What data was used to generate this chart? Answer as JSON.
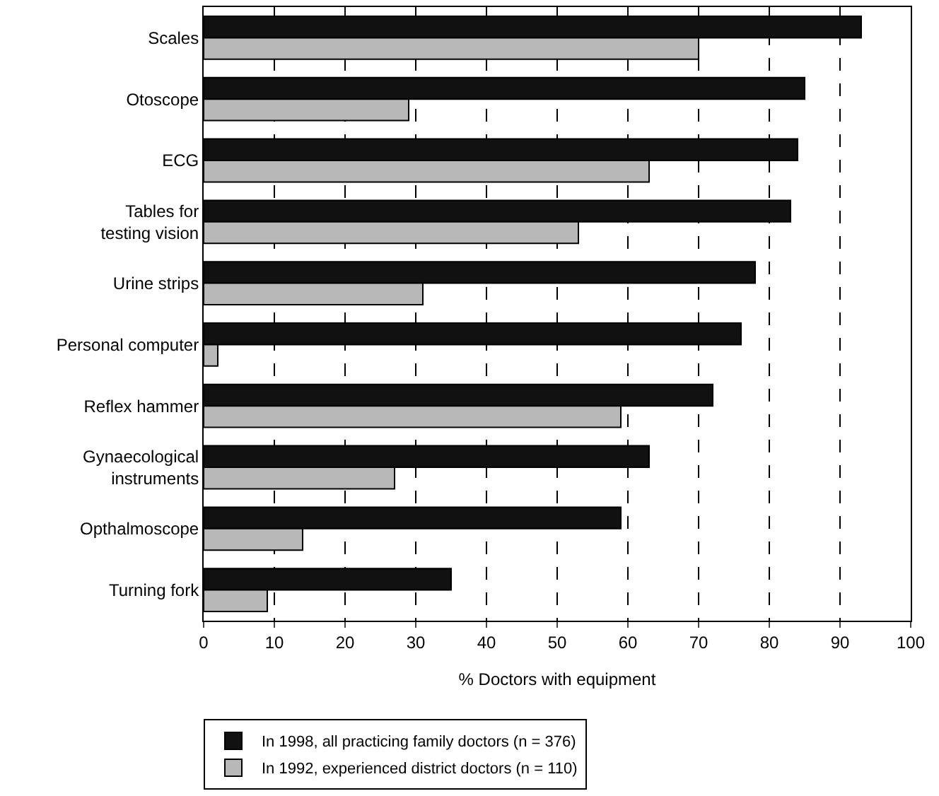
{
  "chart_data": {
    "type": "bar",
    "orientation": "horizontal",
    "xlabel": "% Doctors with equipment",
    "categories": [
      "Scales",
      "Otoscope",
      "ECG",
      "Tables for\ntesting vision",
      "Urine strips",
      "Personal computer",
      "Reflex hammer",
      "Gynaecological\ninstruments",
      "Opthalmoscope",
      "Turning fork"
    ],
    "series": [
      {
        "name": "In 1998, all practicing family doctors (n = 376)",
        "color": "#111111",
        "values": [
          93,
          85,
          84,
          83,
          78,
          76,
          72,
          63,
          59,
          35
        ]
      },
      {
        "name": "In 1992, experienced district doctors (n = 110)",
        "color": "#b8b8b8",
        "values": [
          70,
          29,
          63,
          53,
          31,
          2,
          59,
          27,
          14,
          9
        ]
      }
    ],
    "xlim": [
      0,
      100
    ],
    "xticks": [
      0,
      10,
      20,
      30,
      40,
      50,
      60,
      70,
      80,
      90,
      100
    ],
    "grid": "x",
    "legend": "bottom"
  }
}
